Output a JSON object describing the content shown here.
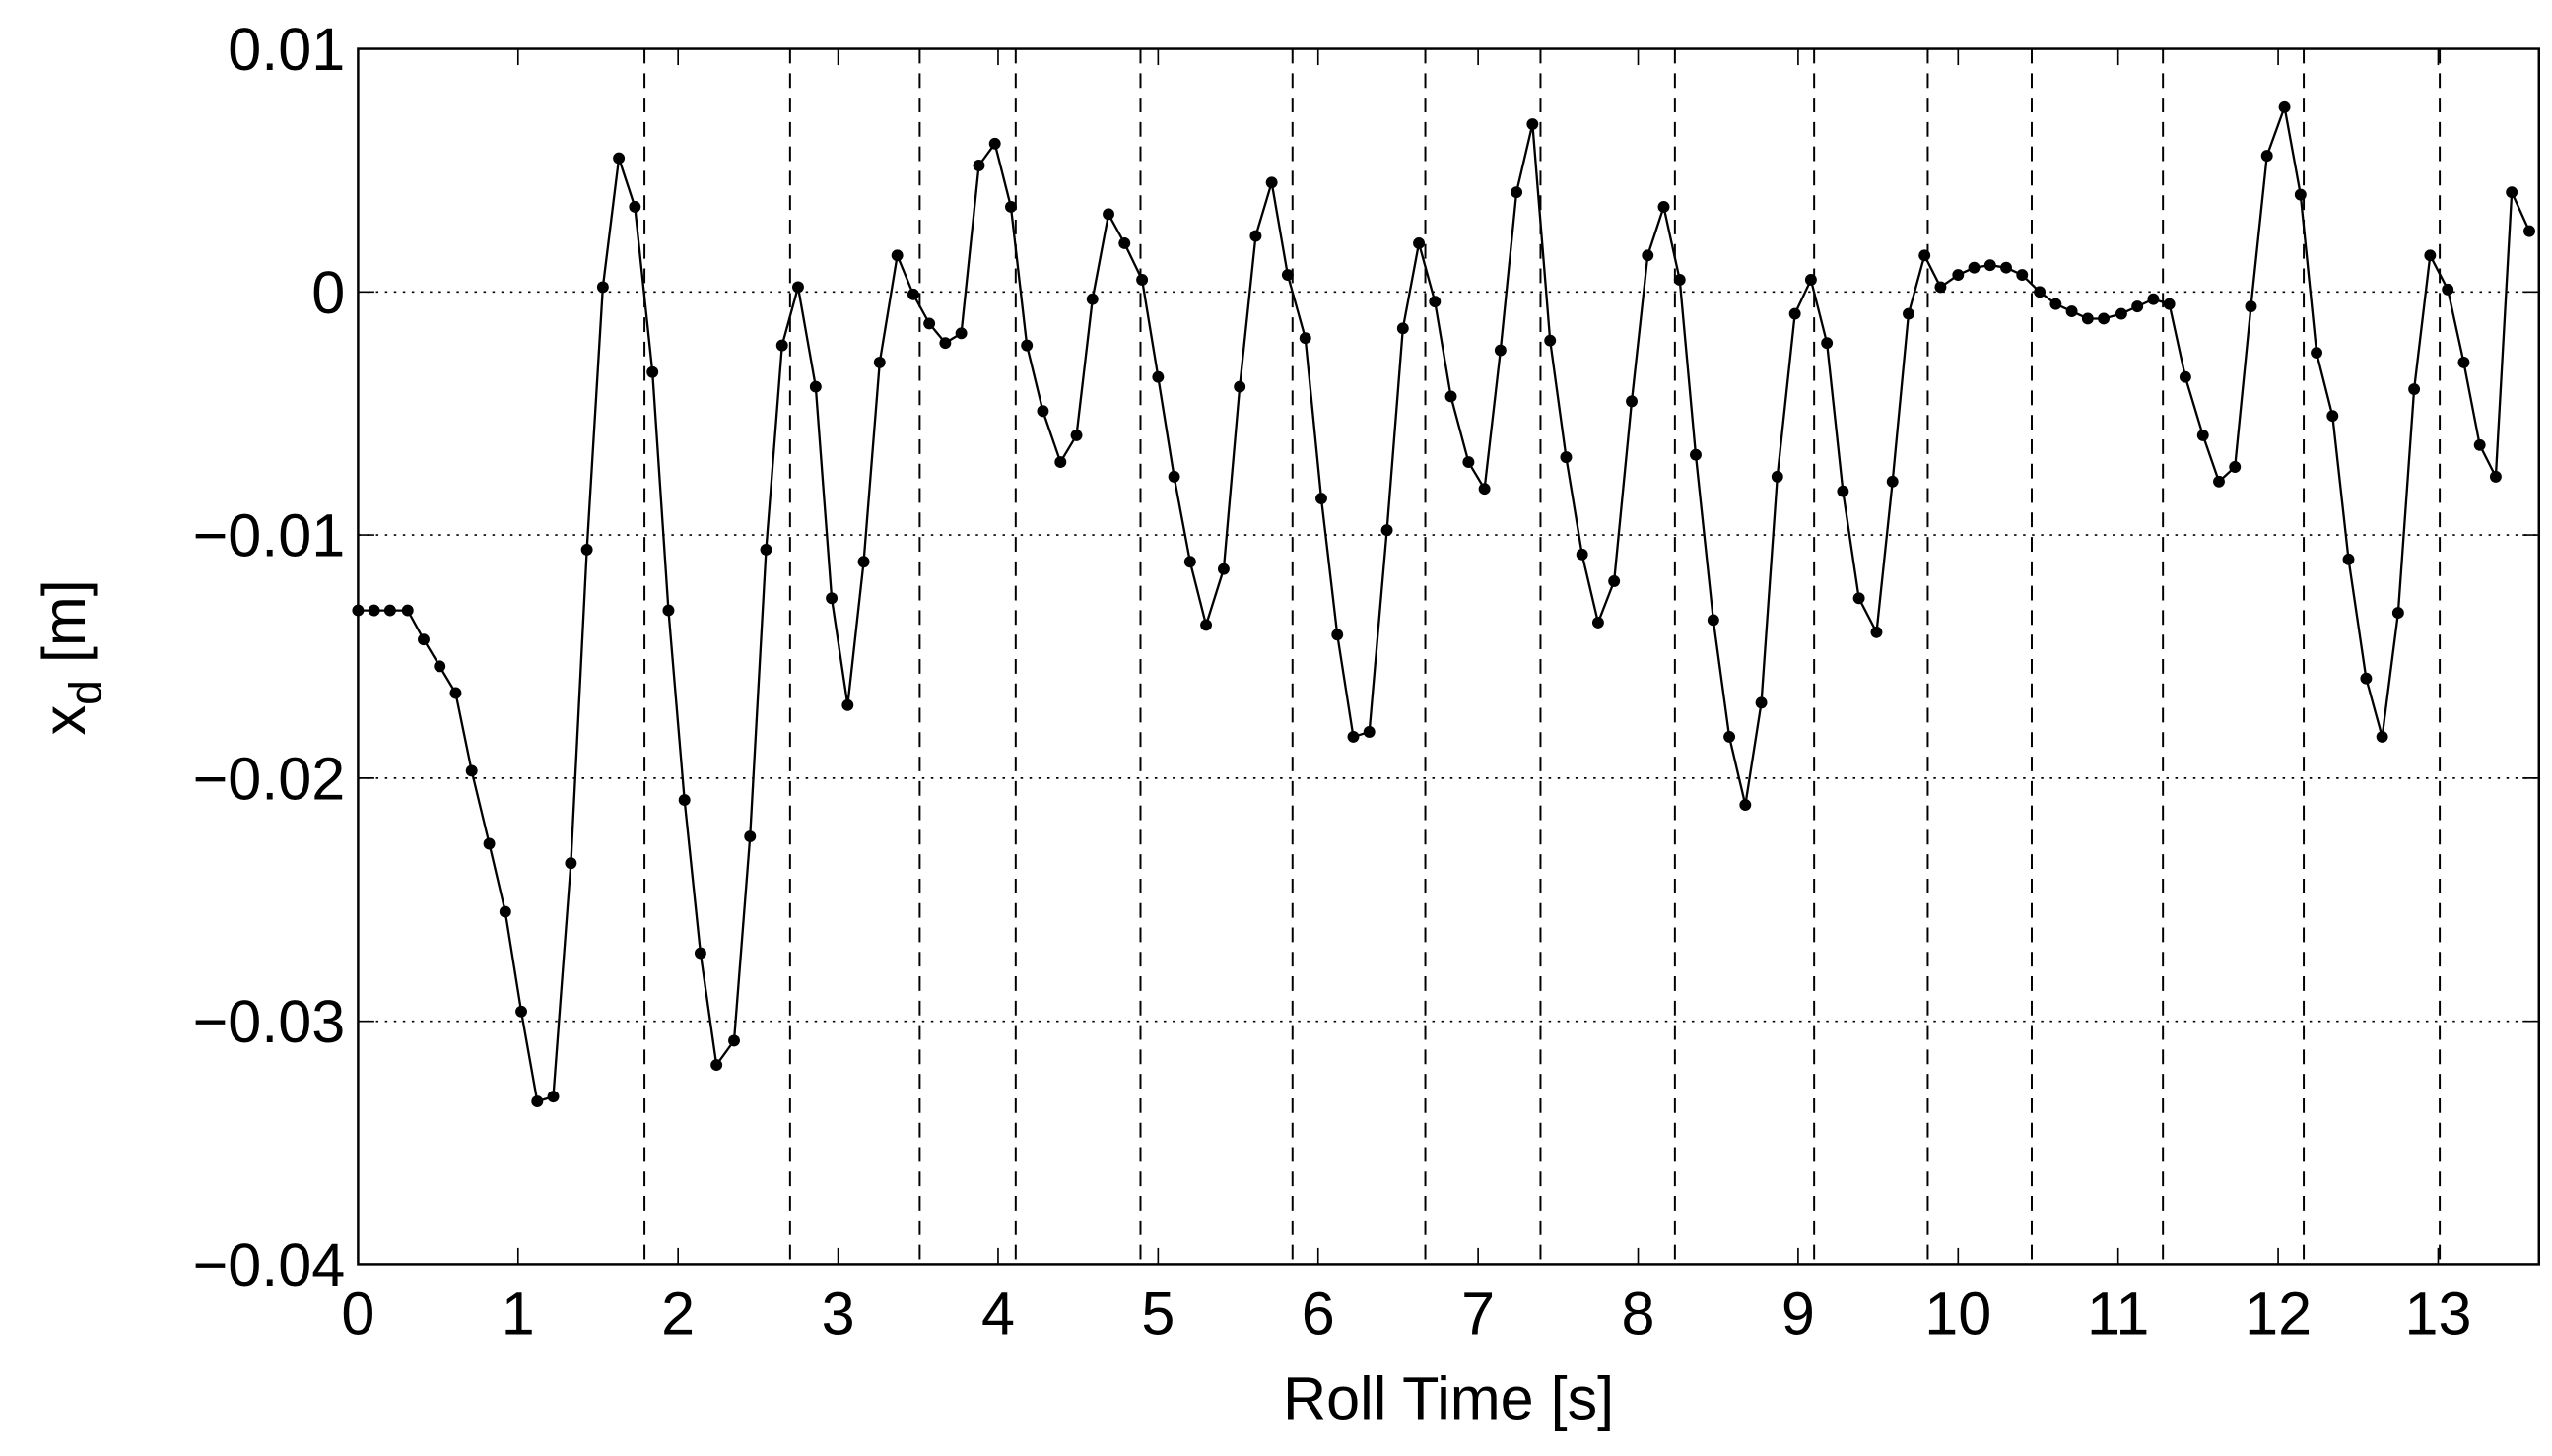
{
  "chart_data": {
    "type": "line",
    "xlabel": "Roll Time [s]",
    "ylabel": [
      "x",
      "d",
      " [m]"
    ],
    "xlim": [
      0,
      13.63
    ],
    "ylim": [
      -0.04,
      0.01
    ],
    "xticks": [
      0,
      1,
      2,
      3,
      4,
      5,
      6,
      7,
      8,
      9,
      10,
      11,
      12,
      13
    ],
    "yticks": [
      {
        "value": -0.04,
        "label": "−0.04"
      },
      {
        "value": -0.03,
        "label": "−0.03"
      },
      {
        "value": -0.02,
        "label": "−0.02"
      },
      {
        "value": -0.01,
        "label": "−0.01"
      },
      0,
      0.01
    ],
    "grid": "horizontal-dotted",
    "vlines": [
      1.79,
      2.7,
      3.51,
      4.11,
      4.89,
      5.84,
      6.67,
      7.39,
      8.23,
      9.1,
      9.81,
      10.46,
      11.28,
      12.16,
      13.01
    ],
    "x": [
      0,
      0.1,
      0.2,
      0.31,
      0.41,
      0.51,
      0.61,
      0.71,
      0.82,
      0.92,
      1.02,
      1.12,
      1.22,
      1.33,
      1.43,
      1.53,
      1.63,
      1.73,
      1.84,
      1.94,
      2.04,
      2.14,
      2.24,
      2.35,
      2.45,
      2.55,
      2.65,
      2.75,
      2.86,
      2.96,
      3.06,
      3.16,
      3.26,
      3.37,
      3.47,
      3.57,
      3.67,
      3.77,
      3.88,
      3.98,
      4.08,
      4.18,
      4.28,
      4.39,
      4.49,
      4.59,
      4.69,
      4.79,
      4.9,
      5.0,
      5.1,
      5.2,
      5.3,
      5.41,
      5.51,
      5.61,
      5.71,
      5.81,
      5.92,
      6.02,
      6.12,
      6.22,
      6.32,
      6.43,
      6.53,
      6.63,
      6.73,
      6.83,
      6.94,
      7.04,
      7.14,
      7.24,
      7.34,
      7.45,
      7.55,
      7.65,
      7.75,
      7.85,
      7.96,
      8.06,
      8.16,
      8.26,
      8.36,
      8.47,
      8.57,
      8.67,
      8.77,
      8.87,
      8.98,
      9.08,
      9.18,
      9.28,
      9.38,
      9.49,
      9.59,
      9.69,
      9.79,
      9.89,
      10.0,
      10.1,
      10.2,
      10.3,
      10.4,
      10.51,
      10.61,
      10.71,
      10.81,
      10.91,
      11.02,
      11.12,
      11.22,
      11.32,
      11.42,
      11.53,
      11.63,
      11.73,
      11.83,
      11.93,
      12.04,
      12.14,
      12.24,
      12.34,
      12.44,
      12.55,
      12.65,
      12.75,
      12.85,
      12.95,
      13.06,
      13.16,
      13.26,
      13.36,
      13.46,
      13.57
    ],
    "series": [
      {
        "color": "#000000",
        "values": [
          -0.0131,
          -0.0131,
          -0.0131,
          -0.0131,
          -0.0143,
          -0.0154,
          -0.0165,
          -0.0197,
          -0.0227,
          -0.0255,
          -0.0296,
          -0.0333,
          -0.0331,
          -0.0235,
          -0.0106,
          0.0002,
          0.0055,
          0.0035,
          -0.0033,
          -0.0131,
          -0.0209,
          -0.0272,
          -0.0318,
          -0.0308,
          -0.0224,
          -0.0106,
          -0.0022,
          0.0002,
          -0.0039,
          -0.0126,
          -0.017,
          -0.0111,
          -0.0029,
          0.0015,
          -0.0001,
          -0.0013,
          -0.0021,
          -0.0017,
          0.0052,
          0.0061,
          0.0035,
          -0.0022,
          -0.0049,
          -0.007,
          -0.0059,
          -0.0003,
          0.0032,
          0.002,
          0.0005,
          -0.0035,
          -0.0076,
          -0.0111,
          -0.0137,
          -0.0114,
          -0.0039,
          0.0023,
          0.0045,
          0.0007,
          -0.0019,
          -0.0085,
          -0.0141,
          -0.0183,
          -0.0181,
          -0.0098,
          -0.0015,
          0.002,
          -0.0004,
          -0.0043,
          -0.007,
          -0.0081,
          -0.0024,
          0.0041,
          0.0069,
          -0.002,
          -0.0068,
          -0.0108,
          -0.0136,
          -0.0119,
          -0.0045,
          0.0015,
          0.0035,
          0.0005,
          -0.0067,
          -0.0135,
          -0.0183,
          -0.0211,
          -0.0169,
          -0.0076,
          -0.0009,
          0.0005,
          -0.0021,
          -0.0082,
          -0.0126,
          -0.014,
          -0.0078,
          -0.0009,
          0.0015,
          0.0002,
          0.0007,
          0.001,
          0.0011,
          0.001,
          0.0007,
          0.0,
          -0.0005,
          -0.0008,
          -0.0011,
          -0.0011,
          -0.0009,
          -0.0006,
          -0.0003,
          -0.0005,
          -0.0035,
          -0.0059,
          -0.0078,
          -0.0072,
          -0.0006,
          0.0056,
          0.0076,
          0.004,
          -0.0025,
          -0.0051,
          -0.011,
          -0.0159,
          -0.0183,
          -0.0132,
          -0.004,
          0.0015,
          0.0001,
          -0.0029,
          -0.0063,
          -0.0076,
          0.0041,
          0.0025
        ]
      }
    ]
  }
}
